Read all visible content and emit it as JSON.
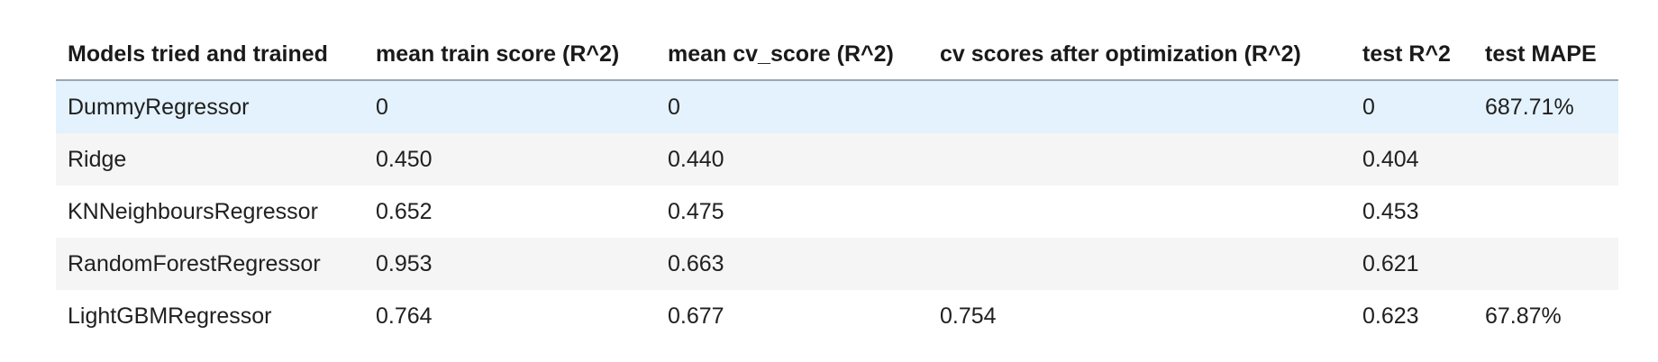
{
  "table": {
    "headers": [
      "Models tried and trained",
      "mean train score (R^2)",
      "mean cv_score (R^2)",
      "cv scores after optimization (R^2)",
      "test R^2",
      "test MAPE"
    ],
    "rows": [
      [
        "DummyRegressor",
        "0",
        "0",
        "",
        "0",
        "687.71%"
      ],
      [
        "Ridge",
        "0.450",
        "0.440",
        "",
        "0.404",
        ""
      ],
      [
        "KNNeighboursRegressor",
        "0.652",
        "0.475",
        "",
        "0.453",
        ""
      ],
      [
        "RandomForestRegressor",
        "0.953",
        "0.663",
        "",
        "0.621",
        ""
      ],
      [
        "LightGBMRegressor",
        "0.764",
        "0.677",
        "0.754",
        "0.623",
        "67.87%"
      ]
    ]
  },
  "colors": {
    "hover_row": "#e3f2fc",
    "stripe_row": "#f5f5f5",
    "header_rule": "#9aa7b3"
  }
}
